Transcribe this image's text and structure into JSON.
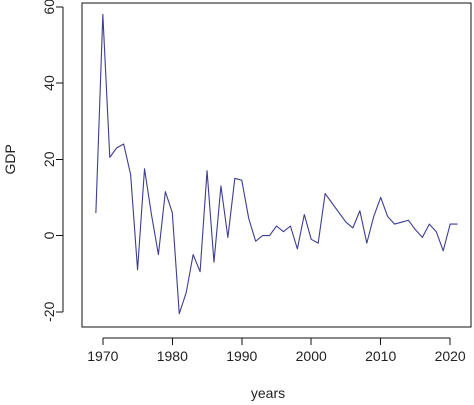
{
  "chart_data": {
    "type": "line",
    "title": "",
    "xlabel": "years",
    "ylabel": "GDP",
    "xlim": [
      1967,
      2023
    ],
    "ylim": [
      -24,
      61
    ],
    "xticks": [
      1970,
      1980,
      1990,
      2000,
      2010,
      2020
    ],
    "yticks": [
      -20,
      0,
      20,
      40,
      60
    ],
    "x_tick_labels": [
      "1970",
      "1980",
      "1990",
      "2000",
      "2010",
      "2020"
    ],
    "y_tick_labels": [
      "-20",
      "0",
      "20",
      "40",
      "60"
    ],
    "grid": false,
    "legend": "none",
    "series": [
      {
        "color": "#3d3d93",
        "x": [
          1969,
          1970,
          1971,
          1972,
          1973,
          1974,
          1975,
          1976,
          1977,
          1978,
          1979,
          1980,
          1981,
          1982,
          1983,
          1984,
          1985,
          1986,
          1987,
          1988,
          1989,
          1990,
          1991,
          1992,
          1993,
          1994,
          1995,
          1996,
          1997,
          1998,
          1999,
          2000,
          2001,
          2002,
          2003,
          2004,
          2005,
          2006,
          2007,
          2008,
          2009,
          2010,
          2011,
          2012,
          2013,
          2014,
          2015,
          2016,
          2017,
          2018,
          2019,
          2020,
          2021
        ],
        "values": [
          6.0,
          58.0,
          20.5,
          23.0,
          24.0,
          16.0,
          -9.0,
          17.5,
          5.5,
          -5.0,
          11.5,
          6.0,
          -20.5,
          -15.0,
          -5.0,
          -9.5,
          17.0,
          -7.0,
          13.0,
          -0.5,
          15.0,
          14.5,
          4.5,
          -1.5,
          0.0,
          0.0,
          2.5,
          1.0,
          2.5,
          -3.5,
          5.5,
          -1.0,
          -2.0,
          11.0,
          8.5,
          6.0,
          3.5,
          2.0,
          6.5,
          -2.0,
          5.0,
          10.0,
          5.0,
          3.0,
          3.5,
          4.0,
          1.5,
          -0.5,
          3.0,
          1.0,
          -4.0,
          3.0,
          3.0
        ]
      }
    ]
  }
}
